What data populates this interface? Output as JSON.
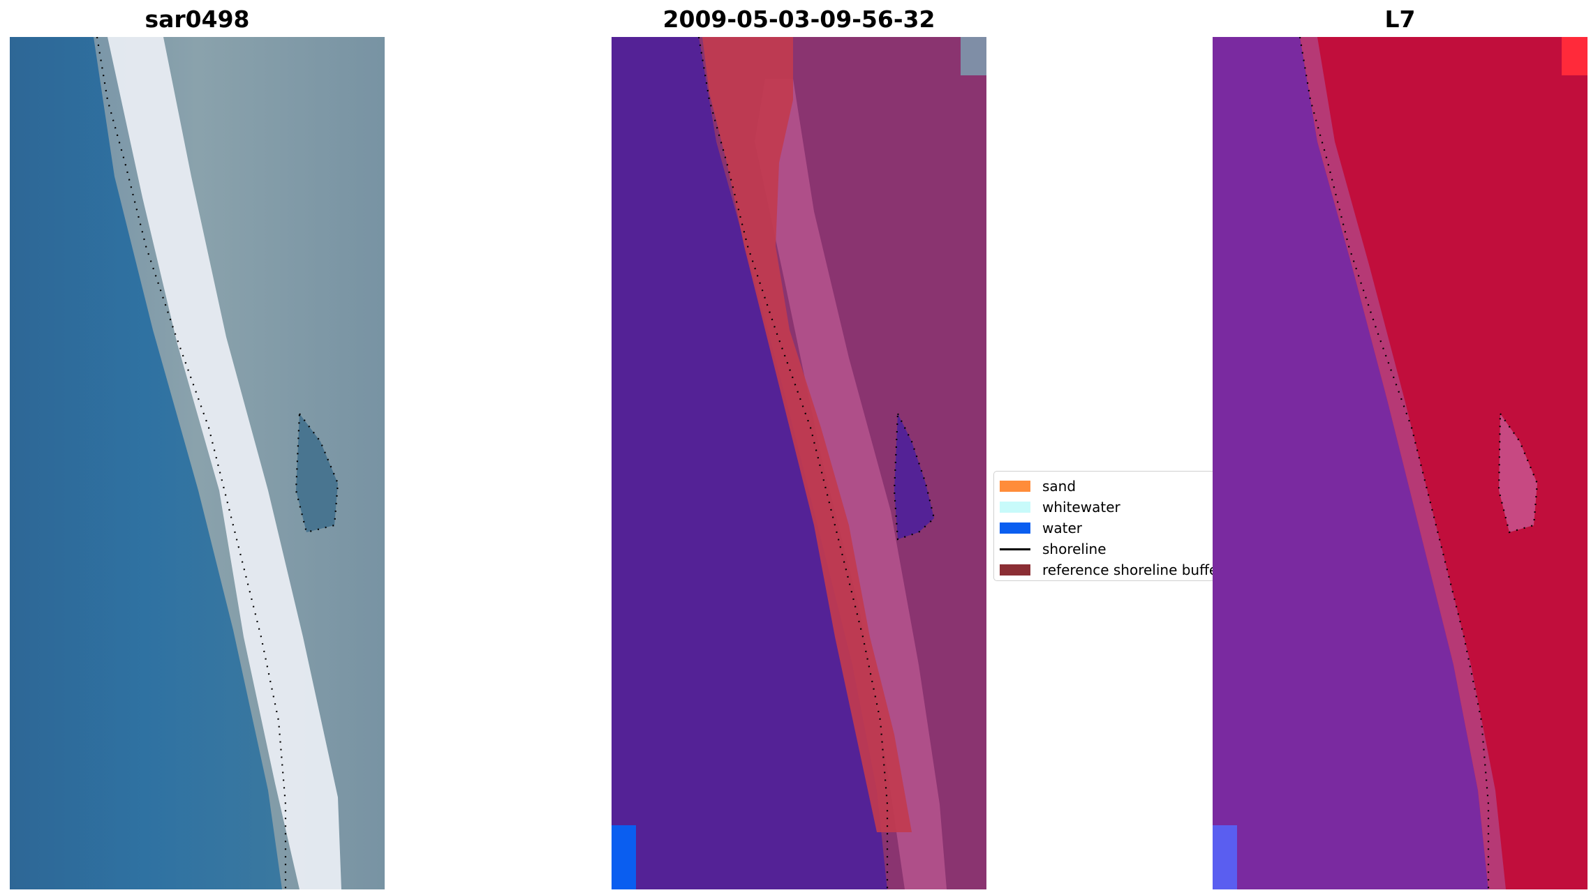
{
  "titles": {
    "panel_1": "sar0498",
    "panel_2": "2009-05-03-09-56-32",
    "panel_3": "L7"
  },
  "panels": [
    {
      "content": "true-colour satellite image of coastline",
      "image_icon": "satellite-rgb-image"
    },
    {
      "content": "classified image",
      "image_icon": "classified-image"
    },
    {
      "content": "false-colour image",
      "image_icon": "satellite-false-colour-image"
    }
  ],
  "legend": {
    "items": [
      {
        "label": "sand",
        "color": "#ff8c3a",
        "kind": "patch"
      },
      {
        "label": "whitewater",
        "color": "#c8fafa",
        "kind": "patch"
      },
      {
        "label": "water",
        "color": "#0a5ef0",
        "kind": "patch"
      },
      {
        "label": "shoreline",
        "color": "#000000",
        "kind": "line"
      },
      {
        "label": "reference shoreline buffer",
        "color": "#8b2e34",
        "kind": "patch"
      }
    ]
  },
  "colors": {
    "rgb_water": "#2f6a98",
    "rgb_whitewater": "#eef0f4",
    "rgb_land": "#7f98a6",
    "class_water": "#542296",
    "class_buffer": "#c13b4f",
    "class_land": "#8a3470",
    "class_land_light": "#b85690",
    "fc_water": "#7a2aa0",
    "fc_land": "#c10e3c"
  }
}
